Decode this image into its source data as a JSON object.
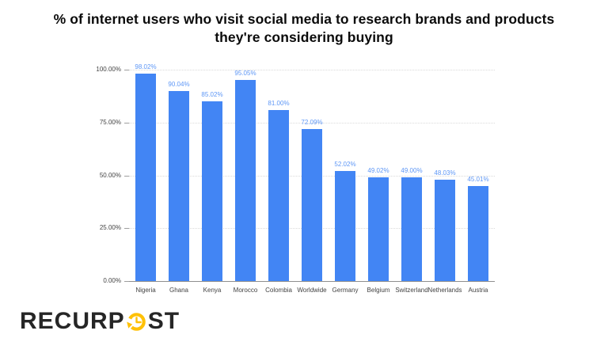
{
  "title": "% of internet users who visit social media to research brands and products they're considering buying",
  "logo": {
    "text_pre": "RECURP",
    "text_post": "ST",
    "icon": "clock-refresh-icon",
    "text_color": "#262626",
    "accent_color": "#FFC107"
  },
  "chart_data": {
    "type": "bar",
    "title": "% of internet users who visit social media to research brands and products they're considering buying",
    "categories": [
      "Nigeria",
      "Ghana",
      "Kenya",
      "Morocco",
      "Colombia",
      "Worldwide",
      "Germany",
      "Belgium",
      "Switzerland",
      "Netherlands",
      "Austria"
    ],
    "values": [
      98.02,
      90.04,
      85.02,
      95.05,
      81.0,
      72.09,
      52.02,
      49.02,
      49.0,
      48.03,
      45.01
    ],
    "value_labels": [
      "98.02%",
      "90.04%",
      "85.02%",
      "95.05%",
      "81.00%",
      "72.09%",
      "52.02%",
      "49.02%",
      "49.00%",
      "48.03%",
      "45.01%"
    ],
    "xlabel": "",
    "ylabel": "",
    "ylim": [
      0,
      100
    ],
    "yticks": [
      {
        "value": 0,
        "label": "0.00%"
      },
      {
        "value": 25,
        "label": "25.00%"
      },
      {
        "value": 50,
        "label": "50.00%"
      },
      {
        "value": 75,
        "label": "75.00%"
      },
      {
        "value": 100,
        "label": "100.00%"
      }
    ],
    "grid": true,
    "legend": "none",
    "bar_color": "#4285F4",
    "value_label_color": "#5E97F6",
    "gridline_color": "#dadada",
    "axis_label_color": "#444444"
  }
}
